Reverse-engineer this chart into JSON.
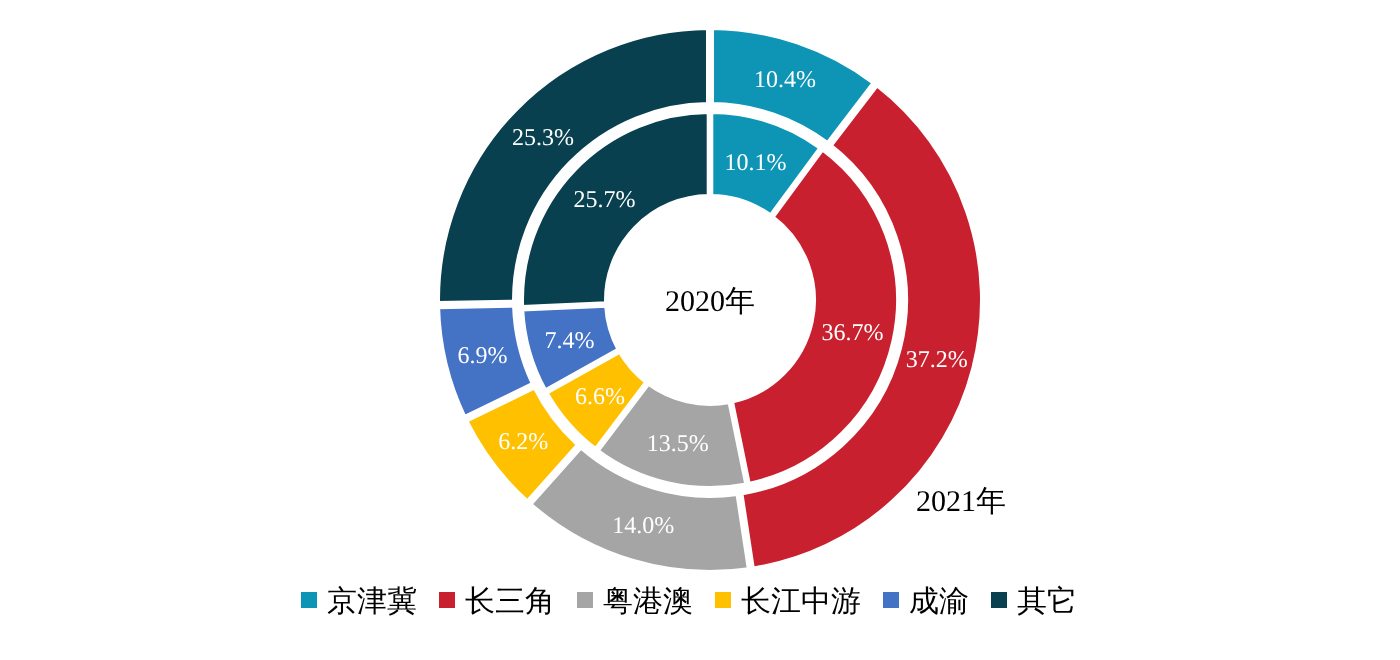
{
  "chart_data": {
    "type": "donut",
    "categories": [
      "京津冀",
      "长三角",
      "粤港澳",
      "长江中游",
      "成渝",
      "其它"
    ],
    "colors": [
      "#0e94b4",
      "#c8202f",
      "#a5a5a5",
      "#ffc000",
      "#4472c4",
      "#08404f"
    ],
    "series": [
      {
        "name": "2020年",
        "values": [
          10.1,
          36.7,
          13.5,
          6.6,
          7.4,
          25.7
        ],
        "value_labels": [
          "10.1%",
          "36.7%",
          "13.5%",
          "6.6%",
          "7.4%",
          "25.7%"
        ]
      },
      {
        "name": "2021年",
        "values": [
          10.4,
          37.2,
          14.0,
          6.2,
          6.9,
          25.3
        ],
        "value_labels": [
          "10.4%",
          "37.2%",
          "14.0%",
          "6.2%",
          "6.9%",
          "25.3%"
        ]
      }
    ],
    "legend": "bottom"
  }
}
